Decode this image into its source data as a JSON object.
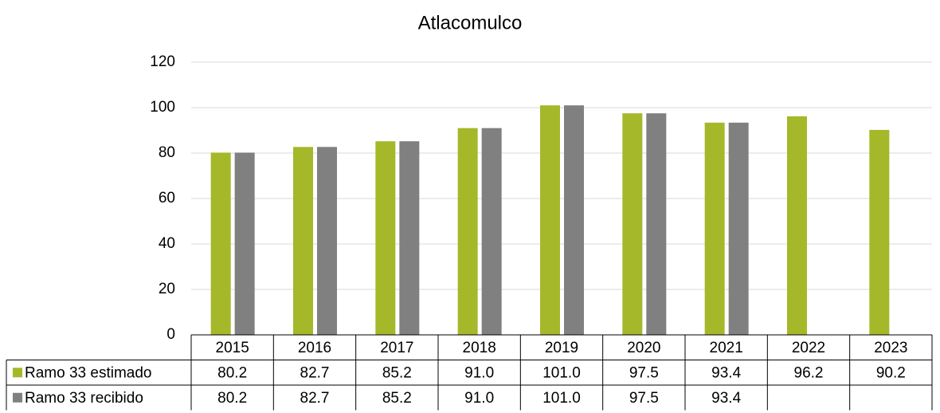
{
  "chart_data": {
    "type": "bar",
    "title": "Atlacomulco",
    "categories": [
      "2015",
      "2016",
      "2017",
      "2018",
      "2019",
      "2020",
      "2021",
      "2022",
      "2023"
    ],
    "series": [
      {
        "name": "Ramo 33 estimado",
        "color": "#a5b82a",
        "values": [
          80.2,
          82.7,
          85.2,
          91.0,
          101.0,
          97.5,
          93.4,
          96.2,
          90.2
        ],
        "value_labels": [
          "80.2",
          "82.7",
          "85.2",
          "91.0",
          "101.0",
          "97.5",
          "93.4",
          "96.2",
          "90.2"
        ]
      },
      {
        "name": "Ramo 33 recibido",
        "color": "#808080",
        "values": [
          80.2,
          82.7,
          85.2,
          91.0,
          101.0,
          97.5,
          93.4,
          null,
          null
        ],
        "value_labels": [
          "80.2",
          "82.7",
          "85.2",
          "91.0",
          "101.0",
          "97.5",
          "93.4",
          null,
          null
        ]
      }
    ],
    "ylim": [
      0,
      120
    ],
    "yticks": [
      0,
      20,
      40,
      60,
      80,
      100,
      120
    ],
    "grid": true,
    "data_table": true
  }
}
